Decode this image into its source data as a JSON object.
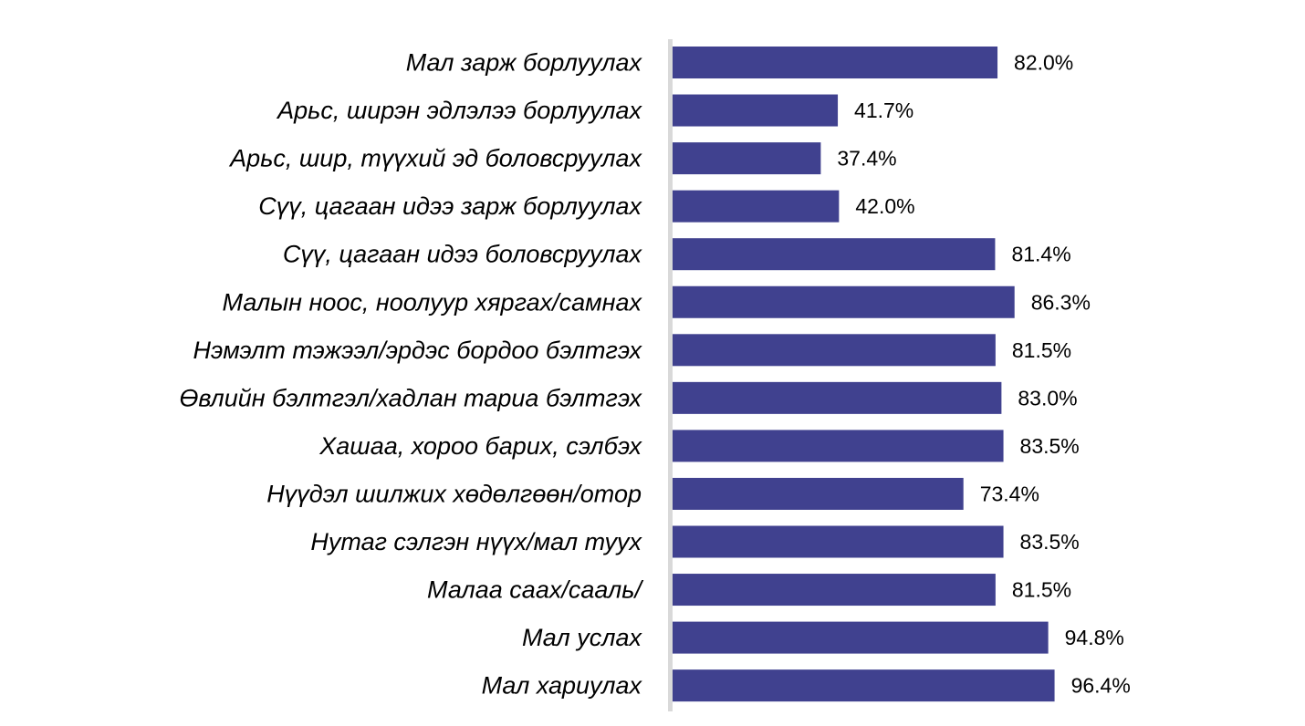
{
  "chart_data": {
    "type": "bar",
    "orientation": "horizontal",
    "title": "",
    "xlabel": "",
    "ylabel": "",
    "xlim": [
      0,
      100
    ],
    "grid": false,
    "legend": "none",
    "bar_color": "#40418f",
    "axis_color": "#d9d9d9",
    "categories": [
      "Мал зарж борлуулах",
      "Арьс, ширэн эдлэлээ борлуулах",
      "Арьс, шир, түүхий эд боловсруулах",
      "Сүү, цагаан идээ зарж борлуулах",
      "Сүү, цагаан идээ боловсруулах",
      "Малын ноос, ноолуур хяргах/самнах",
      "Нэмэлт тэжээл/эрдэс бордоо бэлтгэх",
      "Өвлийн бэлтгэл/хадлан тариа бэлтгэх",
      "Хашаа, хороо барих, сэлбэх",
      "Нүүдэл шилжих хөдөлгөөн/отор",
      "Нутаг сэлгэн нүүх/мал туух",
      "Малаа саах/сааль/",
      "Мал услах",
      "Мал хариулах"
    ],
    "values": [
      82.0,
      41.7,
      37.4,
      42.0,
      81.4,
      86.3,
      81.5,
      83.0,
      83.5,
      73.4,
      83.5,
      81.5,
      94.8,
      96.4
    ],
    "value_labels": [
      "82.0%",
      "41.7%",
      "37.4%",
      "42.0%",
      "81.4%",
      "86.3%",
      "81.5%",
      "83.0%",
      "83.5%",
      "73.4%",
      "83.5%",
      "81.5%",
      "94.8%",
      "96.4%"
    ]
  }
}
